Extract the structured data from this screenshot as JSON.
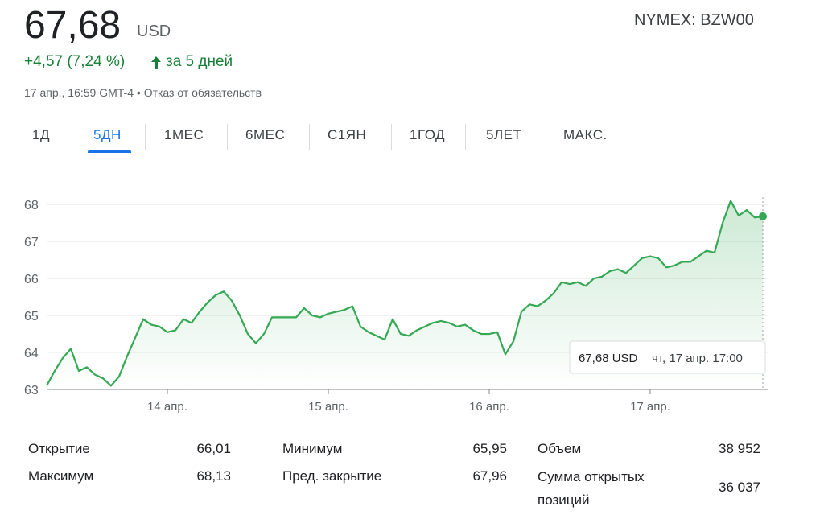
{
  "header": {
    "price": "67,68",
    "currency": "USD",
    "change": "+4,57 (7,24 %)",
    "period": "за 5 дней",
    "timestamp": "17 апр., 16:59 GMT-4",
    "disclaimer": "Отказ от обязательств",
    "ticker": "NYMEX: BZW00"
  },
  "tabs": {
    "items": [
      "1Д",
      "5ДН",
      "1МЕС",
      "6МЕС",
      "С1ЯН",
      "1ГОД",
      "5ЛЕТ",
      "МАКС."
    ],
    "active": 1
  },
  "chart_data": {
    "type": "line",
    "color": "#34a853",
    "categories": [
      null,
      null,
      null,
      null,
      null,
      null,
      null,
      null,
      null,
      null,
      null,
      null,
      null,
      null,
      null,
      "14 апр.",
      null,
      null,
      null,
      null,
      null,
      null,
      null,
      null,
      null,
      null,
      null,
      null,
      null,
      null,
      null,
      null,
      null,
      null,
      null,
      "15 апр.",
      null,
      null,
      null,
      null,
      null,
      null,
      null,
      null,
      null,
      null,
      null,
      null,
      null,
      null,
      null,
      null,
      null,
      null,
      null,
      "16 апр.",
      null,
      null,
      null,
      null,
      null,
      null,
      null,
      null,
      null,
      null,
      null,
      null,
      null,
      null,
      null,
      null,
      null,
      null,
      null,
      "17 апр.",
      null,
      null,
      null,
      null,
      null,
      null,
      null,
      null,
      null,
      null,
      null,
      null,
      null,
      null
    ],
    "values": [
      63.1,
      63.5,
      63.85,
      64.1,
      63.5,
      63.6,
      63.4,
      63.3,
      63.1,
      63.35,
      63.9,
      64.4,
      64.9,
      64.75,
      64.7,
      64.55,
      64.6,
      64.9,
      64.8,
      65.1,
      65.35,
      65.55,
      65.65,
      65.4,
      65.0,
      64.5,
      64.25,
      64.5,
      64.95,
      64.95,
      64.95,
      64.95,
      65.2,
      65.0,
      64.95,
      65.05,
      65.1,
      65.15,
      65.25,
      64.7,
      64.55,
      64.45,
      64.35,
      64.9,
      64.5,
      64.45,
      64.6,
      64.7,
      64.8,
      64.85,
      64.8,
      64.7,
      64.75,
      64.6,
      64.5,
      64.5,
      64.55,
      63.95,
      64.3,
      65.1,
      65.3,
      65.25,
      65.4,
      65.6,
      65.9,
      65.85,
      65.9,
      65.8,
      66.0,
      66.05,
      66.2,
      66.25,
      66.15,
      66.35,
      66.55,
      66.6,
      66.55,
      66.3,
      66.35,
      66.45,
      66.45,
      66.6,
      66.75,
      66.7,
      67.5,
      68.1,
      67.7,
      67.85,
      67.65,
      67.68
    ],
    "ylim": [
      63,
      68.2
    ],
    "yticks": [
      63,
      64,
      65,
      66,
      67,
      68
    ],
    "grid": true,
    "tooltip": {
      "price": "67,68 USD",
      "time": "чт, 17 апр. 17:00"
    }
  },
  "stats": [
    [
      [
        "Открытие",
        "66,01"
      ],
      [
        "Максимум",
        "68,13"
      ]
    ],
    [
      [
        "Минимум",
        "65,95"
      ],
      [
        "Пред. закрытие",
        "67,96"
      ]
    ],
    [
      [
        "Объем",
        "38 952"
      ],
      [
        "Сумма открытых позиций",
        "36 037"
      ]
    ]
  ]
}
